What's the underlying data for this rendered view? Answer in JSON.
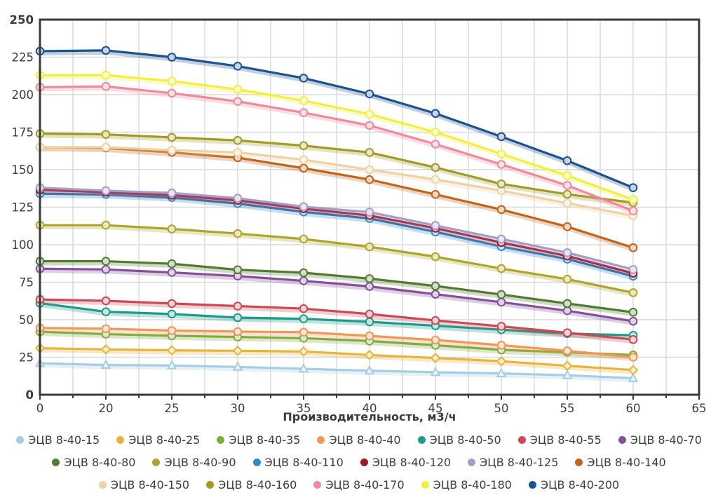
{
  "chart_data": {
    "type": "line",
    "x_axis_type": "category",
    "x": [
      0,
      20,
      25,
      30,
      35,
      40,
      45,
      50,
      55,
      60
    ],
    "x_ticks": [
      0,
      20,
      25,
      30,
      35,
      40,
      45,
      50,
      55,
      60,
      65
    ],
    "y_ticks": [
      0,
      25,
      50,
      75,
      100,
      125,
      150,
      175,
      200,
      225,
      250
    ],
    "ylim": [
      0,
      250
    ],
    "xlabel": "Производительность, м3/ч",
    "grid": true,
    "legend_position": "bottom",
    "colors": {
      "grid": "#d9d9d9",
      "frame": "#3a3a3a",
      "tick_label": "#3c3c3c"
    },
    "series": [
      {
        "name": "ЭЦВ 8-40-15",
        "color": "#a6cee3",
        "marker": "triangle",
        "values": [
          21,
          19.8,
          19.5,
          18.5,
          17.3,
          16,
          15,
          14.2,
          13,
          11
        ]
      },
      {
        "name": "ЭЦВ 8-40-25",
        "color": "#e7b43c",
        "marker": "diamond",
        "values": [
          31,
          30.2,
          29.6,
          29.3,
          28.8,
          26.5,
          24.5,
          22.3,
          19.3,
          16.5
        ]
      },
      {
        "name": "ЭЦВ 8-40-35",
        "color": "#82aa3c",
        "marker": "circle",
        "values": [
          42,
          40.4,
          39.3,
          38.5,
          37.7,
          35.8,
          33,
          29.9,
          28.3,
          26.5
        ]
      },
      {
        "name": "ЭЦВ 8-40-40",
        "color": "#ef9857",
        "marker": "circle",
        "values": [
          44.5,
          44,
          42.8,
          42.1,
          41.7,
          39.2,
          36.5,
          33,
          29.3,
          25
        ]
      },
      {
        "name": "ЭЦВ 8-40-50",
        "color": "#1d9a8a",
        "marker": "circle",
        "values": [
          61,
          55.3,
          53.8,
          51.4,
          50.6,
          48.6,
          46,
          43.3,
          40.8,
          39.6
        ]
      },
      {
        "name": "ЭЦВ 8-40-55",
        "color": "#c94a54",
        "marker": "circle",
        "values": [
          63.5,
          62.6,
          60.8,
          59.1,
          57.4,
          53.8,
          49.5,
          45.6,
          41.3,
          36.8
        ]
      },
      {
        "name": "ЭЦВ 8-40-70",
        "color": "#84509a",
        "marker": "circle",
        "values": [
          84,
          83.5,
          81.5,
          79.1,
          75.9,
          72.2,
          67,
          61.7,
          56,
          49
        ]
      },
      {
        "name": "ЭЦВ 8-40-80",
        "color": "#527b31",
        "marker": "circle",
        "values": [
          89,
          89,
          87.3,
          83.3,
          81.3,
          77.4,
          72.5,
          66.8,
          60.8,
          55
        ]
      },
      {
        "name": "ЭЦВ 8-40-90",
        "color": "#b0a42c",
        "marker": "circle",
        "values": [
          113,
          113,
          110.5,
          107.4,
          103.8,
          98.6,
          92,
          84.1,
          77,
          68
        ]
      },
      {
        "name": "ЭЦВ 8-40-110",
        "color": "#2f8bcc",
        "marker": "circle",
        "values": [
          134,
          133.5,
          131.5,
          127.4,
          121.8,
          117.5,
          108.5,
          98.7,
          90.4,
          79
        ]
      },
      {
        "name": "ЭЦВ 8-40-120",
        "color": "#9a1b28",
        "marker": "circle",
        "values": [
          136.5,
          135,
          133,
          129.5,
          124,
          119.5,
          111,
          101.5,
          92.5,
          81
        ]
      },
      {
        "name": "ЭЦВ 8-40-125",
        "color": "#a79bc9",
        "marker": "circle",
        "values": [
          138,
          136,
          134.5,
          131,
          125.3,
          121.7,
          112.8,
          103.8,
          94.7,
          83.5
        ]
      },
      {
        "name": "ЭЦВ 8-40-140",
        "color": "#c0651c",
        "marker": "circle",
        "values": [
          165,
          164.5,
          161.5,
          158,
          151,
          143.4,
          133.5,
          123.4,
          112,
          98
        ]
      },
      {
        "name": "ЭЦВ 8-40-150",
        "color": "#eed2a4",
        "marker": "circle",
        "values": [
          165,
          165,
          163,
          161.5,
          156.6,
          150,
          143.5,
          136,
          127.7,
          119.3
        ]
      },
      {
        "name": "ЭЦВ 8-40-160",
        "color": "#a39b25",
        "marker": "circle",
        "values": [
          174,
          173.5,
          171.5,
          169.5,
          166,
          161.5,
          151.5,
          140.5,
          133.6,
          128
        ]
      },
      {
        "name": "ЭЦВ 8-40-170",
        "color": "#ee8a9c",
        "marker": "circle",
        "values": [
          205,
          205.5,
          201,
          195.5,
          188,
          179.5,
          167,
          153.5,
          139.5,
          122.5
        ]
      },
      {
        "name": "ЭЦВ 8-40-180",
        "color": "#f4ee3f",
        "marker": "circle",
        "values": [
          213,
          213,
          209,
          203.5,
          196,
          187,
          175,
          160.5,
          146,
          130
        ]
      },
      {
        "name": "ЭЦВ 8-40-200",
        "color": "#20518f",
        "marker": "circle",
        "values": [
          229,
          229.5,
          225,
          219,
          211,
          200.5,
          187.5,
          172,
          156,
          138
        ]
      }
    ]
  }
}
